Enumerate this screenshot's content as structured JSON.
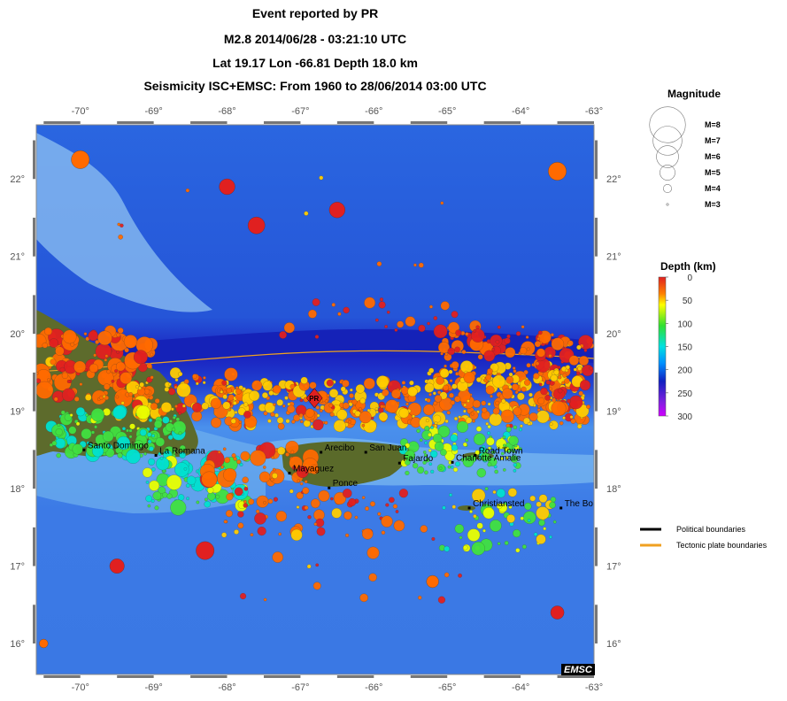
{
  "header": {
    "line1": "Event reported by PR",
    "line2": "M2.8  2014/06/28 - 03:21:10 UTC",
    "line3": "Lat 19.17    Lon -66.81     Depth  18.0 km",
    "line4": "Seismicity ISC+EMSC: From 1960 to 28/06/2014 03:00 UTC"
  },
  "map": {
    "lon_range": [
      -70.6,
      -63.0
    ],
    "lat_range": [
      15.6,
      22.7
    ],
    "lon_ticks": [
      {
        "value": -70,
        "label": "-70°"
      },
      {
        "value": -69,
        "label": "-69°"
      },
      {
        "value": -68,
        "label": "-68°"
      },
      {
        "value": -67,
        "label": "-67°"
      },
      {
        "value": -66,
        "label": "-66°"
      },
      {
        "value": -65,
        "label": "-65°"
      },
      {
        "value": -64,
        "label": "-64°"
      },
      {
        "value": -63,
        "label": "-63°"
      }
    ],
    "lat_ticks": [
      {
        "value": 22,
        "label": "22°"
      },
      {
        "value": 21,
        "label": "21°"
      },
      {
        "value": 20,
        "label": "20°"
      },
      {
        "value": 19,
        "label": "19°"
      },
      {
        "value": 18,
        "label": "18°"
      },
      {
        "value": 17,
        "label": "17°"
      },
      {
        "value": 16,
        "label": "16°"
      }
    ],
    "event": {
      "lon": -66.81,
      "lat": 19.17,
      "label": "PR"
    },
    "cities": [
      {
        "name": "Santo Domingo",
        "lon": -69.95,
        "lat": 18.5
      },
      {
        "name": "La Romana",
        "lon": -68.97,
        "lat": 18.43
      },
      {
        "name": "Arecibo",
        "lon": -66.72,
        "lat": 18.47
      },
      {
        "name": "San Juan",
        "lon": -66.11,
        "lat": 18.47
      },
      {
        "name": "Fajardo",
        "lon": -65.65,
        "lat": 18.33
      },
      {
        "name": "Mayaguez",
        "lon": -67.15,
        "lat": 18.2
      },
      {
        "name": "Ponce",
        "lon": -66.61,
        "lat": 18.01
      },
      {
        "name": "Charlotte Amalie",
        "lon": -64.93,
        "lat": 18.34
      },
      {
        "name": "Road Town",
        "lon": -64.62,
        "lat": 18.43
      },
      {
        "name": "Christiansted",
        "lon": -64.7,
        "lat": 17.75
      },
      {
        "name": "The Bo",
        "lon": -63.45,
        "lat": 17.75
      }
    ],
    "logo": "EMSC",
    "colors": {
      "deep_ocean": "#1822c8",
      "ocean": "#2f6fe6",
      "shelf": "#7fb8f0",
      "land": "#5a6a2a",
      "plate_boundary": "#f0a020",
      "political_boundary": "#000000"
    }
  },
  "magnitude_legend": {
    "title": "Magnitude",
    "items": [
      {
        "label": "M=8",
        "mag": 8
      },
      {
        "label": "M=7",
        "mag": 7
      },
      {
        "label": "M=6",
        "mag": 6
      },
      {
        "label": "M=5",
        "mag": 5
      },
      {
        "label": "M=4",
        "mag": 4
      },
      {
        "label": "M=3",
        "mag": 3
      }
    ]
  },
  "depth_legend": {
    "title": "Depth (km)",
    "ticks": [
      "0",
      "50",
      "100",
      "150",
      "200",
      "250",
      "300"
    ],
    "max": 300
  },
  "boundary_legend": {
    "items": [
      {
        "label": "Political boundaries",
        "color": "#000000"
      },
      {
        "label": "Tectonic plate boundaries",
        "color": "#f0a020"
      }
    ]
  }
}
